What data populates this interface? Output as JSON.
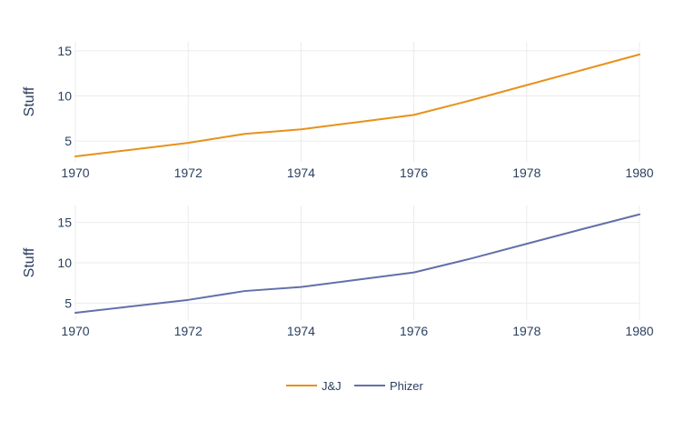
{
  "chart_data": [
    {
      "type": "line",
      "ylabel": "Stuff",
      "xlabel": "",
      "xlim": [
        1970,
        1980
      ],
      "ylim": [
        2.7,
        16
      ],
      "x_ticks": [
        1970,
        1972,
        1974,
        1976,
        1978,
        1980
      ],
      "y_ticks": [
        5,
        10,
        15
      ],
      "grid": true,
      "series": [
        {
          "name": "J&J",
          "color": "#E8911A",
          "x": [
            1970,
            1971,
            1972,
            1973,
            1974,
            1975,
            1976,
            1977,
            1978,
            1979,
            1980
          ],
          "values": [
            3.3,
            4.05,
            4.8,
            5.8,
            6.3,
            7.1,
            7.9,
            9.5,
            11.2,
            12.9,
            14.6
          ]
        }
      ]
    },
    {
      "type": "line",
      "ylabel": "Stuff",
      "xlabel": "",
      "xlim": [
        1970,
        1980
      ],
      "ylim": [
        2.9,
        17.1
      ],
      "x_ticks": [
        1970,
        1972,
        1974,
        1976,
        1978,
        1980
      ],
      "y_ticks": [
        5,
        10,
        15
      ],
      "grid": true,
      "series": [
        {
          "name": "Phizer",
          "color": "#6370A9",
          "x": [
            1970,
            1971,
            1972,
            1973,
            1974,
            1975,
            1976,
            1977,
            1978,
            1979,
            1980
          ],
          "values": [
            3.8,
            4.6,
            5.4,
            6.5,
            7.0,
            7.9,
            8.8,
            10.5,
            12.35,
            14.2,
            16.0
          ]
        }
      ]
    }
  ],
  "legend": {
    "position": "bottom-center",
    "items": [
      {
        "label": "J&J",
        "color": "#E8911A"
      },
      {
        "label": "Phizer",
        "color": "#6370A9"
      }
    ]
  },
  "colors": {
    "grid": "#ebebeb",
    "text": "#2a3f5f",
    "background": "#ffffff"
  }
}
